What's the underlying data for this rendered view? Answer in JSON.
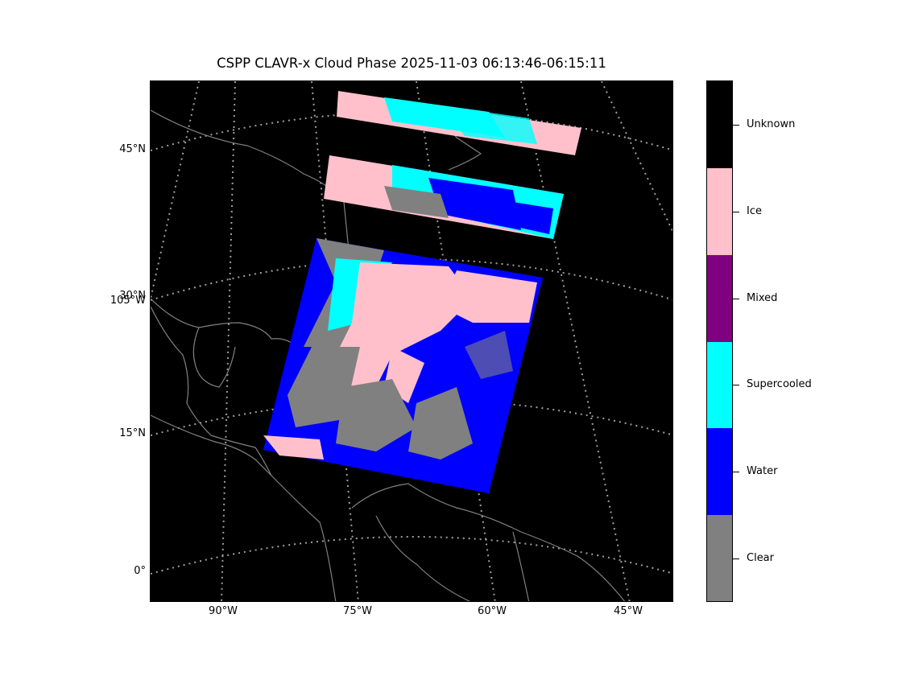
{
  "title": "CSPP CLAVR-x Cloud Phase 2025-11-03 06:13:46-06:15:11",
  "lat_labels": [
    "45°N",
    "30°N",
    "15°N",
    "0°"
  ],
  "overlap_label": "105°W",
  "lon_labels": [
    "90°W",
    "75°W",
    "60°W",
    "45°W"
  ],
  "colorbar": {
    "categories": [
      {
        "label": "Unknown",
        "color": "#000000"
      },
      {
        "label": "Ice",
        "color": "#ffc0cb"
      },
      {
        "label": "Mixed",
        "color": "#800080"
      },
      {
        "label": "Supercooled",
        "color": "#00ffff"
      },
      {
        "label": "Water",
        "color": "#0000ff"
      },
      {
        "label": "Clear",
        "color": "#808080"
      }
    ]
  },
  "colors": {
    "background": "#000000",
    "grid": "#a0a0a0",
    "coastline": "#808080"
  }
}
